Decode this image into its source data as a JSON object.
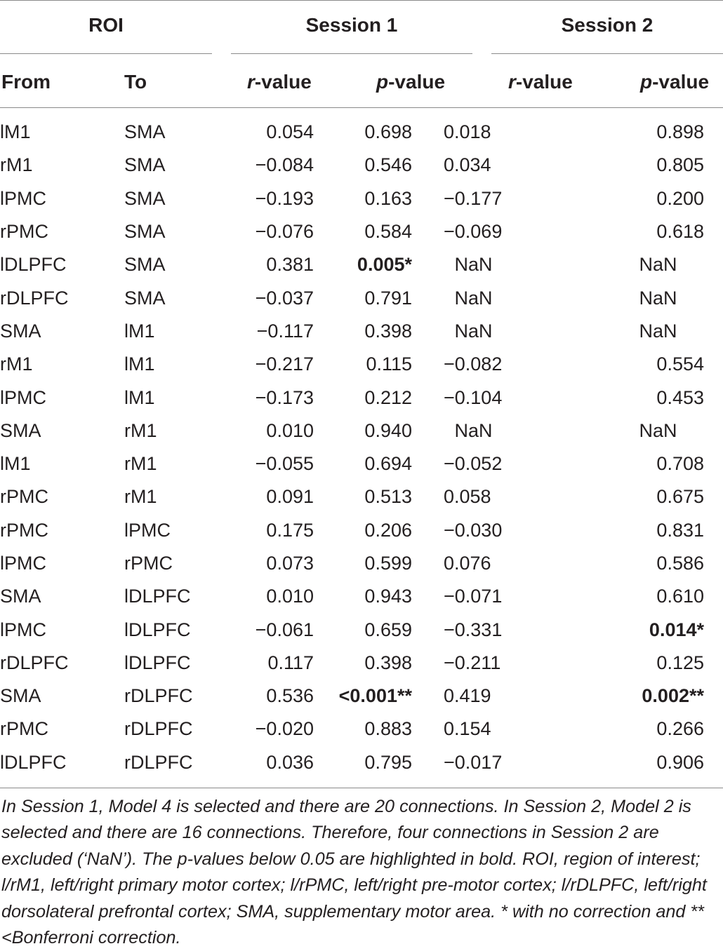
{
  "header": {
    "groups": [
      "ROI",
      "Session 1",
      "Session 2"
    ],
    "sub": {
      "from": "From",
      "to": "To",
      "r_prefix": "r",
      "r_suffix": "-value",
      "p_prefix": "p",
      "p_suffix": "-value"
    }
  },
  "rows": [
    {
      "from": "lM1",
      "to": "SMA",
      "r1": "0.054",
      "p1": "0.698",
      "r2": "0.018",
      "p2": "0.898"
    },
    {
      "from": "rM1",
      "to": "SMA",
      "r1": "−0.084",
      "p1": "0.546",
      "r2": "0.034",
      "p2": "0.805"
    },
    {
      "from": "lPMC",
      "to": "SMA",
      "r1": "−0.193",
      "p1": "0.163",
      "r2": "−0.177",
      "p2": "0.200"
    },
    {
      "from": "rPMC",
      "to": "SMA",
      "r1": "−0.076",
      "p1": "0.584",
      "r2": "−0.069",
      "p2": "0.618"
    },
    {
      "from": "lDLPFC",
      "to": "SMA",
      "r1": "0.381",
      "p1": "0.005*",
      "r2": "NaN",
      "p2": "NaN"
    },
    {
      "from": "rDLPFC",
      "to": "SMA",
      "r1": "−0.037",
      "p1": "0.791",
      "r2": "NaN",
      "p2": "NaN"
    },
    {
      "from": "SMA",
      "to": "lM1",
      "r1": "−0.117",
      "p1": "0.398",
      "r2": "NaN",
      "p2": "NaN"
    },
    {
      "from": "rM1",
      "to": "lM1",
      "r1": "−0.217",
      "p1": "0.115",
      "r2": "−0.082",
      "p2": "0.554"
    },
    {
      "from": "lPMC",
      "to": "lM1",
      "r1": "−0.173",
      "p1": "0.212",
      "r2": "−0.104",
      "p2": "0.453"
    },
    {
      "from": "SMA",
      "to": "rM1",
      "r1": "0.010",
      "p1": "0.940",
      "r2": "NaN",
      "p2": "NaN"
    },
    {
      "from": "lM1",
      "to": "rM1",
      "r1": "−0.055",
      "p1": "0.694",
      "r2": "−0.052",
      "p2": "0.708"
    },
    {
      "from": "rPMC",
      "to": "rM1",
      "r1": "0.091",
      "p1": "0.513",
      "r2": "0.058",
      "p2": "0.675"
    },
    {
      "from": "rPMC",
      "to": "lPMC",
      "r1": "0.175",
      "p1": "0.206",
      "r2": "−0.030",
      "p2": "0.831"
    },
    {
      "from": "lPMC",
      "to": "rPMC",
      "r1": "0.073",
      "p1": "0.599",
      "r2": "0.076",
      "p2": "0.586"
    },
    {
      "from": "SMA",
      "to": "lDLPFC",
      "r1": "0.010",
      "p1": "0.943",
      "r2": "−0.071",
      "p2": "0.610"
    },
    {
      "from": "lPMC",
      "to": "lDLPFC",
      "r1": "−0.061",
      "p1": "0.659",
      "r2": "−0.331",
      "p2": "0.014*"
    },
    {
      "from": "rDLPFC",
      "to": "lDLPFC",
      "r1": "0.117",
      "p1": "0.398",
      "r2": "−0.211",
      "p2": "0.125"
    },
    {
      "from": "SMA",
      "to": "rDLPFC",
      "r1": "0.536",
      "p1": "<0.001**",
      "r2": "0.419",
      "p2": "0.002**"
    },
    {
      "from": "rPMC",
      "to": "rDLPFC",
      "r1": "−0.020",
      "p1": "0.883",
      "r2": "0.154",
      "p2": "0.266"
    },
    {
      "from": "lDLPFC",
      "to": "rDLPFC",
      "r1": "0.036",
      "p1": "0.795",
      "r2": "−0.017",
      "p2": "0.906"
    }
  ],
  "footnote": "In Session 1, Model 4 is selected and there are 20 connections. In Session 2, Model 2 is selected and there are 16 connections. Therefore, four connections in Session 2 are excluded (‘NaN’). The p-values below 0.05 are highlighted in bold. ROI, region of interest; l/rM1, left/right primary motor cortex; l/rPMC, left/right pre-motor cortex; l/rDLPFC, left/right dorsolateral prefrontal cortex; SMA, supplementary motor area. * with no correction and **<Bonferroni correction."
}
